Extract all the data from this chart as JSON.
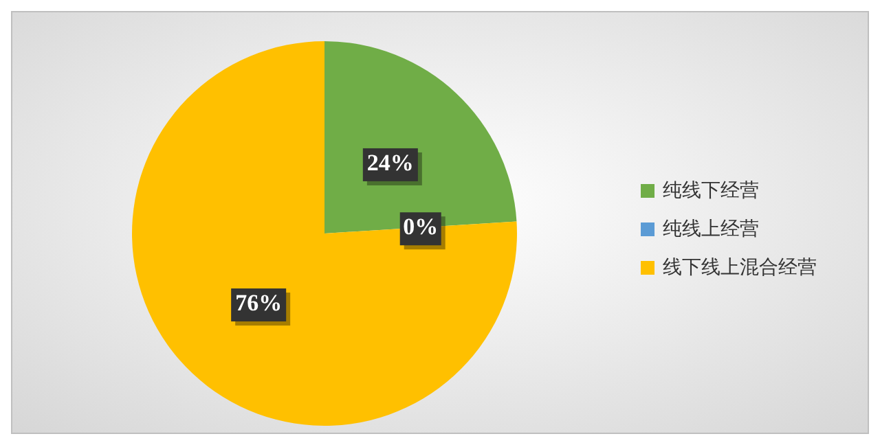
{
  "chart_data": {
    "type": "pie",
    "categories": [
      "纯线下经营",
      "纯线上经营",
      "线下线上混合经营"
    ],
    "values": [
      24,
      0,
      76
    ],
    "colors": [
      "#70ad47",
      "#5b9bd5",
      "#ffc000"
    ],
    "value_labels": [
      "24%",
      "0%",
      "76%"
    ],
    "legend": "right"
  }
}
